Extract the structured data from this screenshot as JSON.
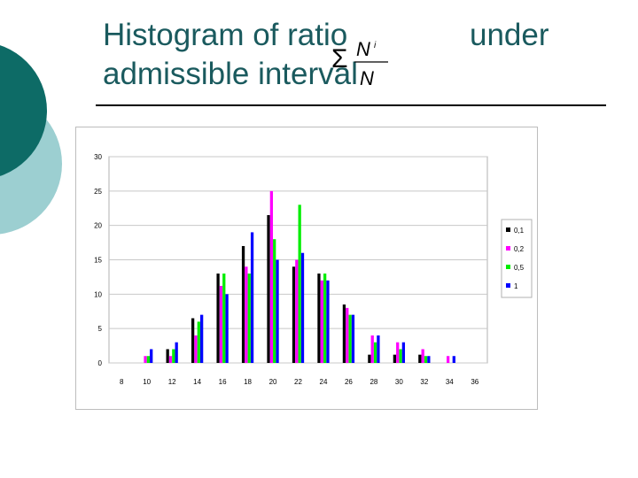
{
  "slide": {
    "title_line1": "Histogram of ratio",
    "title_line2": "admissible interval",
    "title_after_formula": "under"
  },
  "colors": {
    "teal_dark": "#0d6b66",
    "teal_light": "#9ccfd1",
    "title_text": "#1a5a5e"
  },
  "chart_data": {
    "type": "bar",
    "title": "",
    "xlabel": "",
    "ylabel": "",
    "x_ticks": [
      8,
      10,
      12,
      14,
      16,
      18,
      20,
      22,
      24,
      26,
      28,
      30,
      32,
      34,
      36
    ],
    "ylim": [
      0,
      30
    ],
    "y_ticks": [
      0,
      5,
      10,
      15,
      20,
      25,
      30
    ],
    "grid": true,
    "legend_position": "right",
    "categories": [
      10,
      12,
      14,
      16,
      18,
      20,
      22,
      24,
      26,
      28,
      30,
      32,
      34
    ],
    "series": [
      {
        "name": "0,1",
        "color": "#000000",
        "values": [
          0,
          2,
          6.5,
          13,
          17,
          21.5,
          14,
          13,
          8.5,
          1.2,
          1.2,
          1.2,
          0
        ]
      },
      {
        "name": "0,2",
        "color": "#ff00ff",
        "values": [
          1,
          1,
          4,
          11.2,
          14,
          25,
          15,
          12,
          8,
          4,
          3,
          2,
          1
        ]
      },
      {
        "name": "0,5",
        "color": "#00ee00",
        "values": [
          1,
          2,
          6,
          13,
          13,
          18,
          23,
          13,
          7,
          3,
          2,
          1,
          0
        ]
      },
      {
        "name": "1",
        "color": "#0000ff",
        "values": [
          2,
          3,
          7,
          10,
          19,
          15,
          16,
          12,
          7,
          4,
          3,
          1,
          1
        ]
      }
    ]
  }
}
